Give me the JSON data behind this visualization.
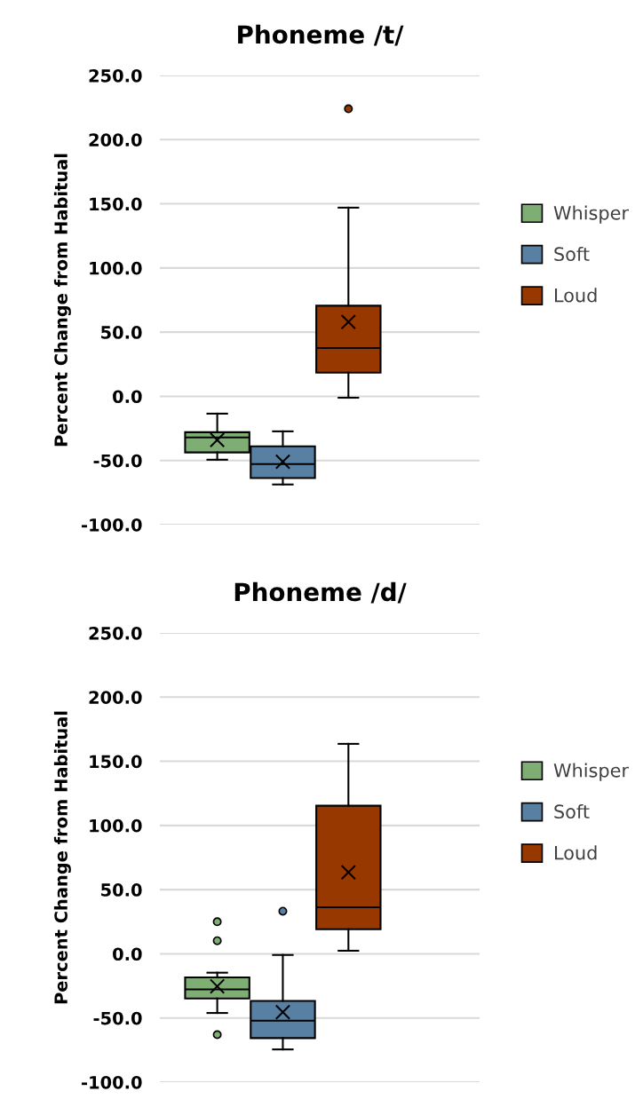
{
  "chart_data": [
    {
      "type": "box",
      "title": "Phoneme /t/",
      "ylabel": "Percent Change from Habitual",
      "categories": [
        null
      ],
      "ylim": [
        -100,
        250
      ],
      "yticks": [
        {
          "value": -100,
          "label": "-100.0"
        },
        {
          "value": -50,
          "label": "-50.0"
        },
        {
          "value": 0,
          "label": "0.0"
        },
        {
          "value": 50,
          "label": "50.0"
        },
        {
          "value": 100,
          "label": "100.0"
        },
        {
          "value": 150,
          "label": "150.0"
        },
        {
          "value": 200,
          "label": "200.0"
        },
        {
          "value": 250,
          "label": "250.0"
        }
      ],
      "grid": "y",
      "legend": "right",
      "series": [
        {
          "name": "Whisper",
          "color": "#7fae74",
          "boxes": [
            {
              "low": -49.4,
              "q1": -43.7,
              "median": -32,
              "q3": -28,
              "high": -13.5,
              "mean": -34
            }
          ]
        },
        {
          "name": "Soft",
          "color": "#5880a2",
          "boxes": [
            {
              "low": -68.7,
              "q1": -63.7,
              "median": -52.8,
              "q3": -39,
              "high": -27.3,
              "mean": -51
            }
          ]
        },
        {
          "name": "Loud",
          "color": "#963800",
          "boxes": [
            {
              "low": -1.1,
              "q1": 18.4,
              "median": 37.7,
              "q3": 70.6,
              "high": 147,
              "mean": 58,
              "outliers": [
                224
              ]
            }
          ]
        }
      ]
    },
    {
      "type": "box",
      "title": "Phoneme /d/",
      "ylabel": "Percent Change from Habitual",
      "categories": [
        null
      ],
      "ylim": [
        -100,
        250
      ],
      "yticks": [
        {
          "value": -100,
          "label": "-100.0"
        },
        {
          "value": -50,
          "label": "-50.0"
        },
        {
          "value": 0,
          "label": "0.0"
        },
        {
          "value": 50,
          "label": "50.0"
        },
        {
          "value": 100,
          "label": "100.0"
        },
        {
          "value": 150,
          "label": "150.0"
        },
        {
          "value": 200,
          "label": "200.0"
        },
        {
          "value": 250,
          "label": "250.0"
        }
      ],
      "grid": "y",
      "legend": "right",
      "series": [
        {
          "name": "Whisper",
          "color": "#7fae74",
          "boxes": [
            {
              "low": -46.1,
              "q1": -34.8,
              "median": -27.7,
              "q3": -18.4,
              "high": -14.7,
              "mean": -25.3,
              "outliers": [
                25,
                10.2,
                -63
              ]
            }
          ]
        },
        {
          "name": "Soft",
          "color": "#5880a2",
          "boxes": [
            {
              "low": -74.5,
              "q1": -65.7,
              "median": -52.1,
              "q3": -36.7,
              "high": -0.9,
              "mean": -45.5,
              "outliers": [
                33.2
              ]
            }
          ]
        },
        {
          "name": "Loud",
          "color": "#963800",
          "boxes": [
            {
              "low": 2.4,
              "q1": 19.2,
              "median": 36.3,
              "q3": 115.4,
              "high": 163.6,
              "mean": 63.5
            }
          ]
        }
      ]
    }
  ]
}
